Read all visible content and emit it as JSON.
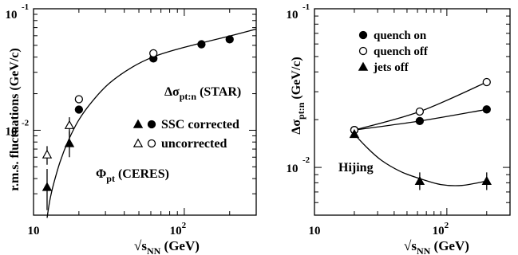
{
  "chart_data": [
    {
      "type": "scatter",
      "xlabel_main": "√s",
      "xlabel_sub": "NN",
      "xlabel_unit": " (GeV)",
      "ylabel": "r.m.s. fluctuations (GeV/c)",
      "xscale": "log",
      "yscale": "log",
      "xlim": [
        10,
        300
      ],
      "ylim": [
        0.002,
        0.1
      ],
      "x_ticks": [
        {
          "value": 10,
          "label": "10"
        },
        {
          "value": 100,
          "label": "10",
          "sup": "2"
        }
      ],
      "y_ticks": [
        {
          "value": 0.01,
          "label": "10",
          "sup": "-2"
        },
        {
          "value": 0.1,
          "label": "10",
          "sup": "-1"
        }
      ],
      "annotations": [
        {
          "id": "star",
          "main": "Δσ",
          "sub": "pt:n",
          "rest": " (STAR)"
        },
        {
          "id": "ceres",
          "main": "Φ",
          "sub": "pt",
          "rest": " (CERES)"
        }
      ],
      "legend": [
        {
          "markers": [
            "triangle-filled",
            "circle-filled"
          ],
          "label": "SSC corrected"
        },
        {
          "markers": [
            "triangle-open",
            "circle-open"
          ],
          "label": "uncorrected"
        }
      ],
      "series": [
        {
          "marker": "triangle-filled",
          "points": [
            {
              "x": 12.3,
              "y": 0.0034,
              "ylo": 0.0022,
              "yhi": 0.0048
            },
            {
              "x": 17.3,
              "y": 0.0078,
              "ylo": 0.006,
              "yhi": 0.0098
            }
          ]
        },
        {
          "marker": "triangle-open",
          "points": [
            {
              "x": 12.3,
              "y": 0.0063,
              "ylo": 0.0052,
              "yhi": 0.0074
            },
            {
              "x": 17.3,
              "y": 0.011,
              "ylo": 0.0091,
              "yhi": 0.0128
            }
          ]
        },
        {
          "marker": "circle-filled",
          "points": [
            {
              "x": 20,
              "y": 0.0148
            },
            {
              "x": 62.4,
              "y": 0.039
            },
            {
              "x": 130,
              "y": 0.051
            },
            {
              "x": 200,
              "y": 0.056
            }
          ]
        },
        {
          "marker": "circle-open",
          "points": [
            {
              "x": 20,
              "y": 0.018
            },
            {
              "x": 62.4,
              "y": 0.043
            }
          ]
        }
      ],
      "curves": [
        {
          "points": [
            [
              12.3,
              0.0019
            ],
            [
              12.8,
              0.0026
            ],
            [
              13.5,
              0.0035
            ],
            [
              15,
              0.0055
            ],
            [
              17,
              0.0082
            ],
            [
              20,
              0.0122
            ],
            [
              25,
              0.0178
            ],
            [
              32,
              0.0245
            ],
            [
              45,
              0.033
            ],
            [
              62.4,
              0.0402
            ],
            [
              90,
              0.0465
            ],
            [
              130,
              0.0523
            ],
            [
              200,
              0.0597
            ],
            [
              300,
              0.068
            ]
          ]
        }
      ]
    },
    {
      "type": "scatter",
      "xlabel_main": "√s",
      "xlabel_sub": "NN",
      "xlabel_unit": " (GeV)",
      "ylabel_main": "Δσ",
      "ylabel_sub": "pt:n",
      "ylabel_unit": " (GeV/c)",
      "xscale": "log",
      "yscale": "log",
      "xlim": [
        10,
        300
      ],
      "ylim": [
        0.005,
        0.1
      ],
      "x_ticks": [
        {
          "value": 10,
          "label": "10"
        },
        {
          "value": 100,
          "label": "10",
          "sup": "2"
        }
      ],
      "y_ticks": [
        {
          "value": 0.01,
          "label": "10",
          "sup": "-2"
        },
        {
          "value": 0.1,
          "label": "10",
          "sup": "-1"
        }
      ],
      "annotations": [
        {
          "id": "hijing",
          "main": "Hijing"
        }
      ],
      "legend": [
        {
          "markers": [
            "circle-filled"
          ],
          "label": "quench on"
        },
        {
          "markers": [
            "circle-open"
          ],
          "label": "quench off"
        },
        {
          "markers": [
            "triangle-filled"
          ],
          "label": "jets off"
        }
      ],
      "series": [
        {
          "marker": "circle-filled",
          "points": [
            {
              "x": 20,
              "y": 0.0172
            },
            {
              "x": 62.4,
              "y": 0.0196
            },
            {
              "x": 200,
              "y": 0.0232
            }
          ]
        },
        {
          "marker": "circle-open",
          "points": [
            {
              "x": 20,
              "y": 0.0172
            },
            {
              "x": 62.4,
              "y": 0.0225
            },
            {
              "x": 200,
              "y": 0.0345
            }
          ]
        },
        {
          "marker": "triangle-filled",
          "points": [
            {
              "x": 20,
              "y": 0.0162
            },
            {
              "x": 62.4,
              "y": 0.0082,
              "ylo": 0.0072,
              "yhi": 0.0093
            },
            {
              "x": 200,
              "y": 0.0082,
              "ylo": 0.0072,
              "yhi": 0.0093
            }
          ]
        }
      ],
      "curves": [
        {
          "points": [
            [
              20,
              0.0172
            ],
            [
              62.4,
              0.0196
            ],
            [
              200,
              0.0232
            ]
          ]
        },
        {
          "points": [
            [
              20,
              0.0172
            ],
            [
              62.4,
              0.0225
            ],
            [
              200,
              0.0345
            ]
          ]
        },
        {
          "points": [
            [
              20,
              0.0162
            ],
            [
              25,
              0.0133
            ],
            [
              32,
              0.0111
            ],
            [
              45,
              0.0094
            ],
            [
              62.4,
              0.0085
            ],
            [
              90,
              0.0078
            ],
            [
              130,
              0.0077
            ],
            [
              200,
              0.0082
            ]
          ]
        }
      ]
    }
  ]
}
